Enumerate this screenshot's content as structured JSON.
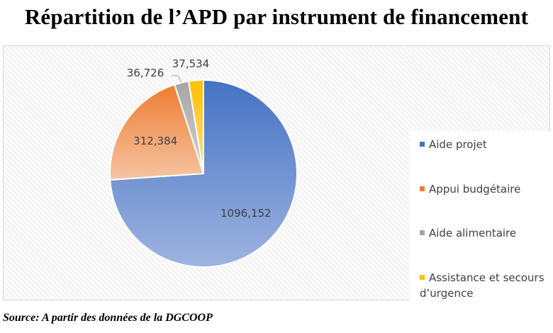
{
  "chart_data": {
    "type": "pie",
    "title": "Répartition de l’APD par instrument de financement",
    "categories": [
      "Aide projet",
      "Appui budgétaire",
      "Aide alimentaire",
      "Assistance et secours d’urgence"
    ],
    "values": [
      1096.152,
      312.384,
      36.726,
      37.534
    ],
    "data_labels": [
      "1096,152",
      "312,384",
      "36,726",
      "37,534"
    ],
    "colors": [
      "#4472c4",
      "#ed7d31",
      "#a5a5a5",
      "#ffc000"
    ],
    "legend_position": "right"
  },
  "legend": {
    "items": [
      {
        "label": "Aide projet",
        "color": "#4472c4"
      },
      {
        "label": "Appui budgétaire",
        "color": "#ed7d31"
      },
      {
        "label": "Aide alimentaire",
        "color": "#a5a5a5"
      },
      {
        "label": "Assistance et secours d’urgence",
        "color": "#ffc000"
      }
    ]
  },
  "source": "Source: A partir des données de la DGCOOP"
}
